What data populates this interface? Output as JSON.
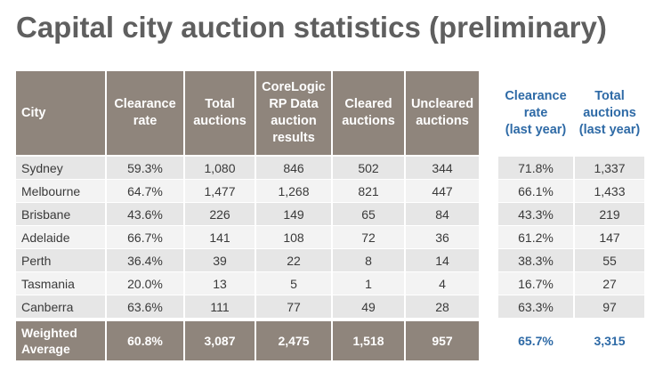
{
  "title": "Capital city auction statistics (preliminary)",
  "headers": {
    "city": "City",
    "clearance_rate": [
      "Clearance",
      "rate"
    ],
    "total_auctions": [
      "Total",
      "auctions"
    ],
    "corelogic": [
      "CoreLogic",
      "RP Data",
      "auction",
      "results"
    ],
    "cleared": [
      "Cleared",
      "auctions"
    ],
    "uncleared": [
      "Uncleared",
      "auctions"
    ],
    "ly_clearance_rate": [
      "Clearance",
      "rate",
      "(last year)"
    ],
    "ly_total_auctions": [
      "Total",
      "auctions",
      "(last year)"
    ]
  },
  "rows": [
    {
      "city": "Sydney",
      "clearance_rate": "59.3%",
      "total": "1,080",
      "corelogic": "846",
      "cleared": "502",
      "uncleared": "344",
      "ly_rate": "71.8%",
      "ly_total": "1,337"
    },
    {
      "city": "Melbourne",
      "clearance_rate": "64.7%",
      "total": "1,477",
      "corelogic": "1,268",
      "cleared": "821",
      "uncleared": "447",
      "ly_rate": "66.1%",
      "ly_total": "1,433"
    },
    {
      "city": "Brisbane",
      "clearance_rate": "43.6%",
      "total": "226",
      "corelogic": "149",
      "cleared": "65",
      "uncleared": "84",
      "ly_rate": "43.3%",
      "ly_total": "219"
    },
    {
      "city": "Adelaide",
      "clearance_rate": "66.7%",
      "total": "141",
      "corelogic": "108",
      "cleared": "72",
      "uncleared": "36",
      "ly_rate": "61.2%",
      "ly_total": "147"
    },
    {
      "city": "Perth",
      "clearance_rate": "36.4%",
      "total": "39",
      "corelogic": "22",
      "cleared": "8",
      "uncleared": "14",
      "ly_rate": "38.3%",
      "ly_total": "55"
    },
    {
      "city": "Tasmania",
      "clearance_rate": "20.0%",
      "total": "13",
      "corelogic": "5",
      "cleared": "1",
      "uncleared": "4",
      "ly_rate": "16.7%",
      "ly_total": "27"
    },
    {
      "city": "Canberra",
      "clearance_rate": "63.6%",
      "total": "111",
      "corelogic": "77",
      "cleared": "49",
      "uncleared": "28",
      "ly_rate": "63.3%",
      "ly_total": "97"
    }
  ],
  "weighted_average": {
    "label": [
      "Weighted",
      "Average"
    ],
    "clearance_rate": "60.8%",
    "total": "3,087",
    "corelogic": "2,475",
    "cleared": "1,518",
    "uncleared": "957",
    "ly_rate": "65.7%",
    "ly_total": "3,315"
  },
  "colors": {
    "header_bg": "#8f857c",
    "header_text": "#ffffff",
    "title": "#5f5f5f",
    "last_year_text": "#2e6aa6",
    "row_odd": "#e6e6e6",
    "row_even": "#f3f3f3"
  }
}
